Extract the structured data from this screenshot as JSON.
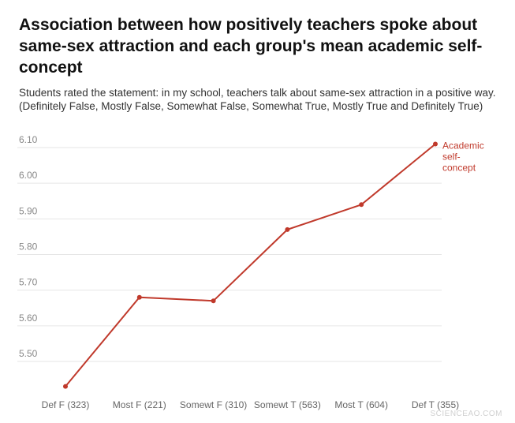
{
  "title": "Association between how positively teachers spoke about same-sex attraction and each group's mean academic self-concept",
  "subtitle_line1": "Students rated the statement: in my school, teachers talk about same-sex attraction in a positive way.",
  "subtitle_line2": "(Definitely False, Mostly False, Somewhat False, Somewhat True, Mostly True and Definitely True)",
  "watermark": "SCIENCEAO.COM",
  "colors": {
    "series": "#c0392b",
    "grid": "#e6e6e6"
  },
  "chart_data": {
    "type": "line",
    "title": "Association between how positively teachers spoke about same-sex attraction and each group's mean academic self-concept",
    "xlabel": "",
    "ylabel": "",
    "categories": [
      "Def F (323)",
      "Most F (221)",
      "Somewt F (310)",
      "Somewt T (563)",
      "Most T (604)",
      "Def T (355)"
    ],
    "series": [
      {
        "name": "Academic self-concept",
        "name_lines": [
          "Academic",
          "self-",
          "concept"
        ],
        "values": [
          5.43,
          5.68,
          5.67,
          5.87,
          5.94,
          6.11
        ]
      }
    ],
    "yticks": [
      "5.50",
      "5.60",
      "5.70",
      "5.80",
      "5.90",
      "6.00",
      "6.10"
    ],
    "ylim": [
      5.4,
      6.12
    ],
    "grid": true,
    "legend": "end-of-line label"
  }
}
